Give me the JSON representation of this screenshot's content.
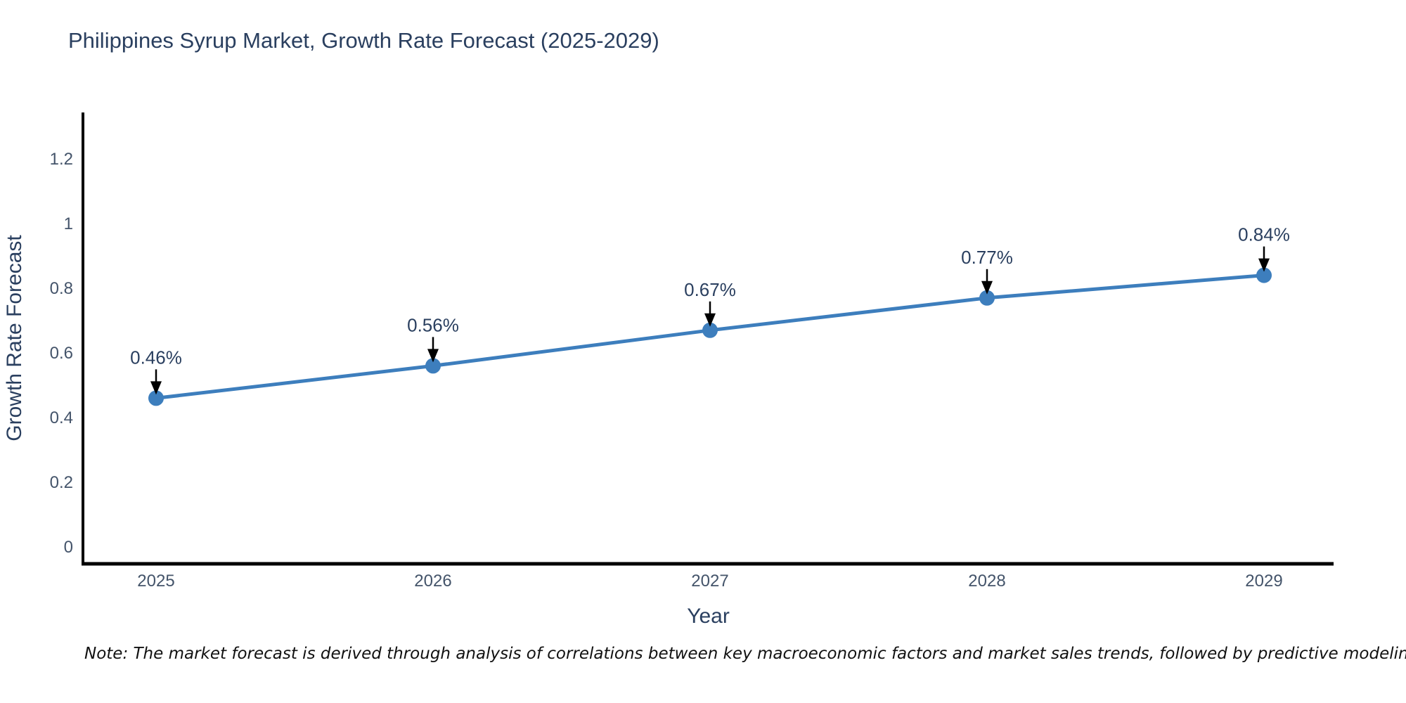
{
  "title": "Philippines Syrup Market, Growth Rate Forecast (2025-2029)",
  "note": "Note: The market forecast is derived through analysis of correlations between key macroeconomic factors and market sales trends, followed by predictive modeling to project future sales",
  "colors": {
    "background": "#ffffff",
    "line": "#3d7ebd",
    "marker": "#3d7ebd",
    "axis": "#000000",
    "arrow": "#000000",
    "title_text": "#2a3f5f",
    "tick_text": "#44546a",
    "annotation_text": "#2a3f5f",
    "note_text": "#111111"
  },
  "chart_data": {
    "type": "line",
    "title": "Philippines Syrup Market, Growth Rate Forecast (2025-2029)",
    "xlabel": "Year",
    "ylabel": "Growth Rate Forecast",
    "x": [
      2025,
      2026,
      2027,
      2028,
      2029
    ],
    "series": [
      {
        "name": "Growth Rate Forecast",
        "values": [
          0.46,
          0.56,
          0.67,
          0.77,
          0.84
        ],
        "unit": "%"
      }
    ],
    "point_labels": [
      "0.46%",
      "0.56%",
      "0.67%",
      "0.77%",
      "0.84%"
    ],
    "ytick_labels": [
      "0",
      "0.2",
      "0.4",
      "0.6",
      "0.8",
      "1",
      "1.2"
    ],
    "ytick_values": [
      0,
      0.2,
      0.4,
      0.6,
      0.8,
      1.0,
      1.2
    ],
    "ylim": [
      0,
      1.3
    ],
    "grid": false,
    "legend": "none",
    "annotation_style": "value-label-with-down-arrow"
  }
}
